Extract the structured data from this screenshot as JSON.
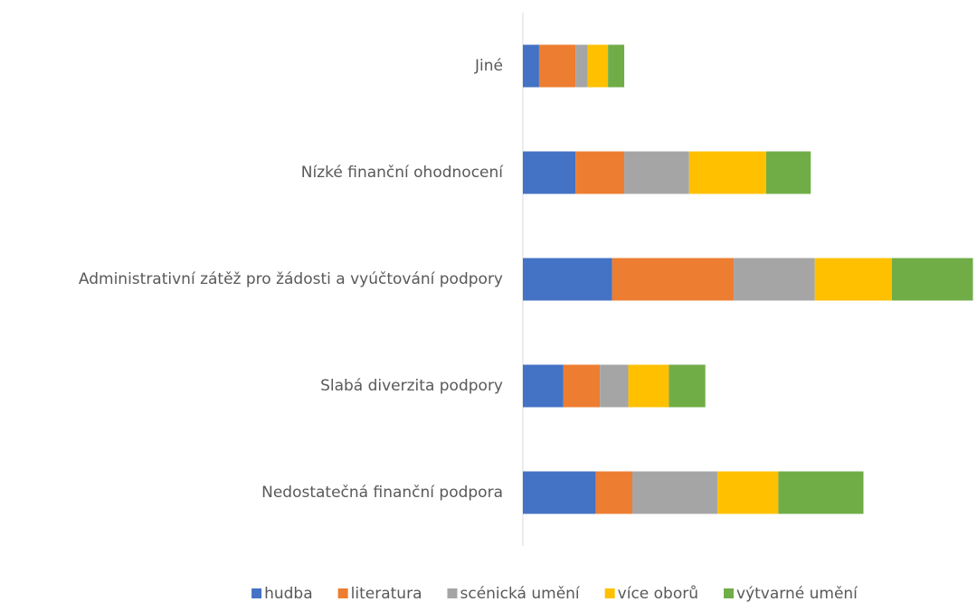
{
  "chart_data": {
    "type": "stacked_barh",
    "categories": [
      "Jiné",
      "Nízké finanční ohodnocení",
      "Administrativní zátěž pro žádosti a vyúčtování podpory",
      "Slabá diverzita podpory",
      "Nedostatečná finanční podpora"
    ],
    "series": [
      {
        "name": "hudba",
        "color": "#4472c4",
        "values": [
          4,
          13,
          22,
          10,
          18
        ]
      },
      {
        "name": "literatura",
        "color": "#ed7d31",
        "values": [
          9,
          12,
          30,
          9,
          9
        ]
      },
      {
        "name": "scénická umění",
        "color": "#a5a5a5",
        "values": [
          3,
          16,
          20,
          7,
          21
        ]
      },
      {
        "name": "více oborů",
        "color": "#ffc000",
        "values": [
          5,
          19,
          19,
          10,
          15
        ]
      },
      {
        "name": "výtvarné umění",
        "color": "#70ad47",
        "values": [
          4,
          11,
          20,
          9,
          21
        ]
      }
    ],
    "xlim": [
      0,
      112
    ],
    "legend": "bottom"
  }
}
